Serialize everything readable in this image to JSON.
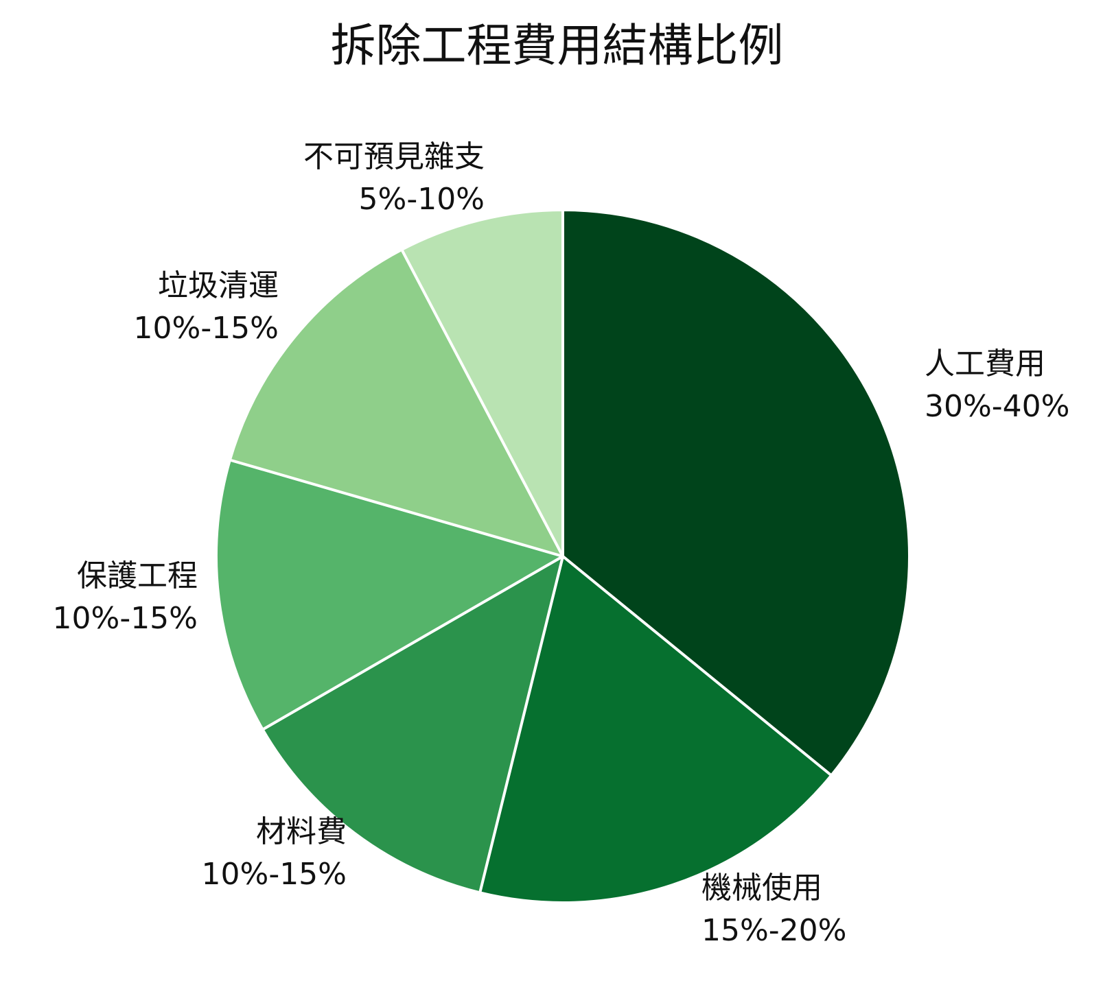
{
  "chart_data": {
    "type": "pie",
    "title": "拆除工程費用結構比例",
    "start_angle_deg": 0,
    "direction": "clockwise",
    "slices": [
      {
        "name": "人工費用",
        "range": "30%-40%",
        "value": 35,
        "color": "#00441b"
      },
      {
        "name": "機械使用",
        "range": "15%-20%",
        "value": 17.5,
        "color": "#06702f"
      },
      {
        "name": "材料費",
        "range": "10%-15%",
        "value": 12.5,
        "color": "#2b934c"
      },
      {
        "name": "保護工程",
        "range": "10%-15%",
        "value": 12.5,
        "color": "#55b46a"
      },
      {
        "name": "垃圾清運",
        "range": "10%-15%",
        "value": 12.5,
        "color": "#8fcf8a"
      },
      {
        "name": "不可預見雜支",
        "range": "5%-10%",
        "value": 7.5,
        "color": "#b9e3b2"
      }
    ],
    "slice_border_color": "#ffffff",
    "legend": "none"
  }
}
